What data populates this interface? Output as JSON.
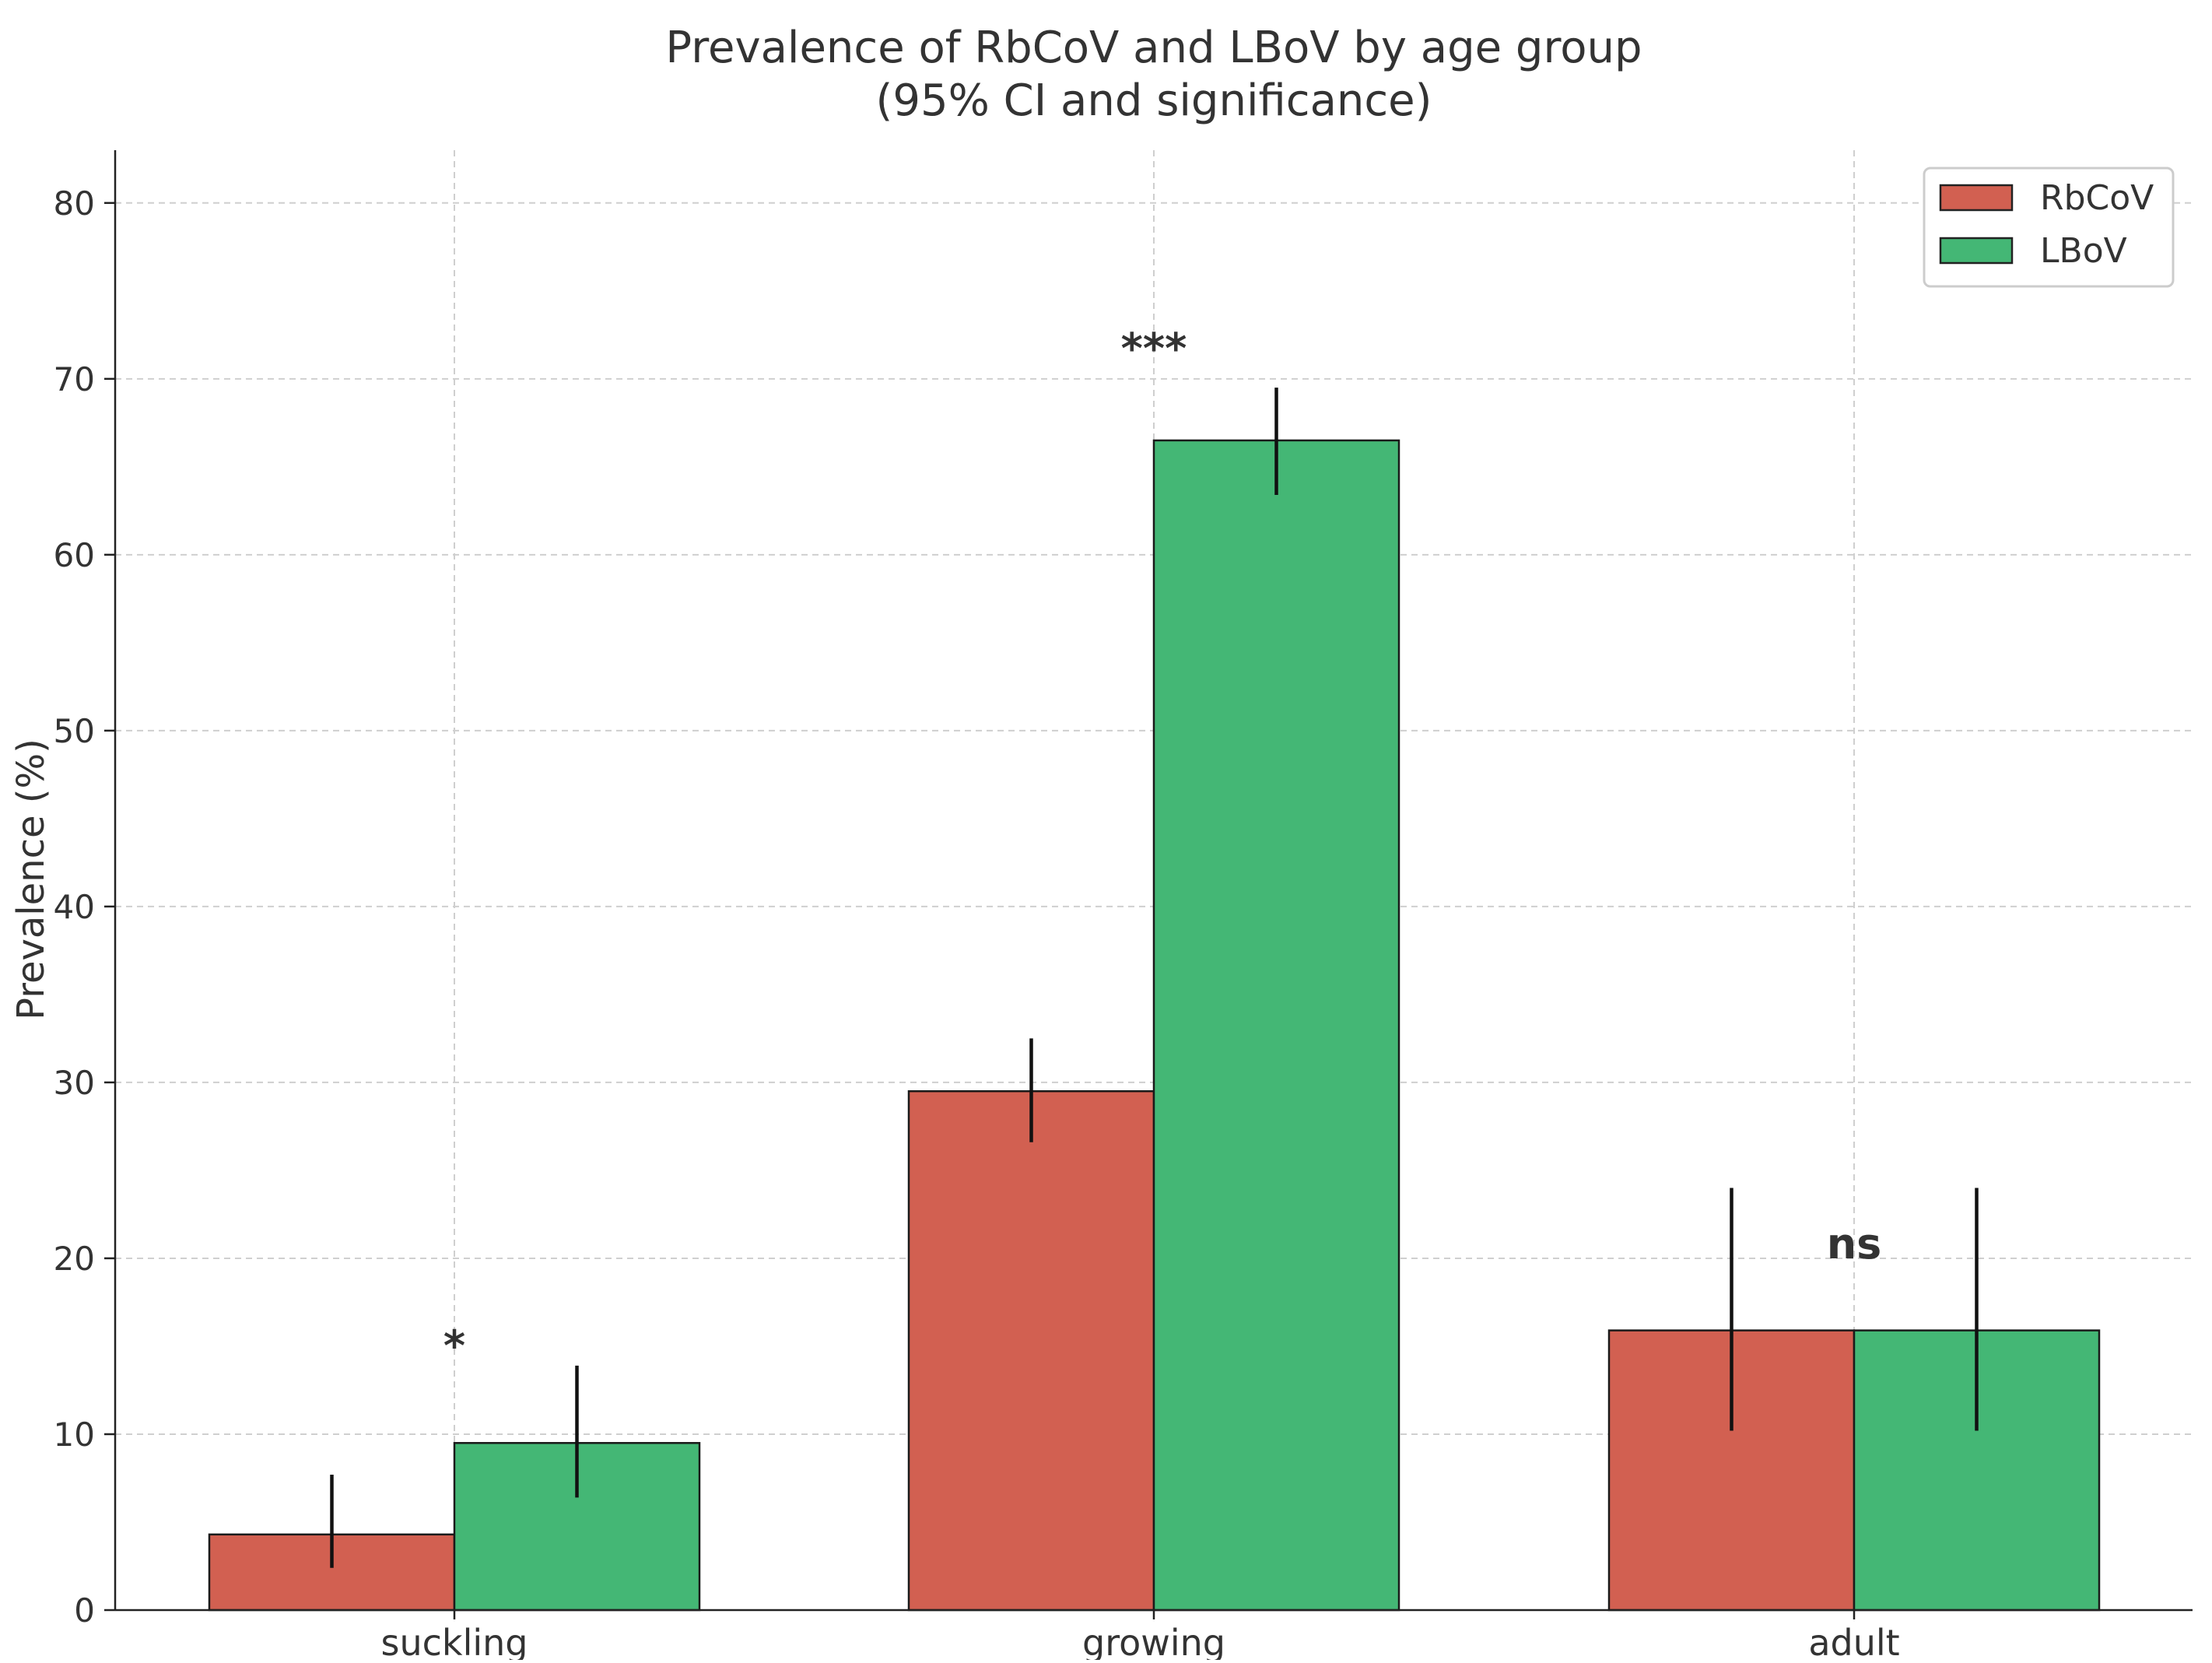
{
  "chart_data": {
    "type": "bar",
    "title": "Prevalence of RbCoV and LBoV by age group",
    "subtitle": "(95% CI and significance)",
    "xlabel": "",
    "ylabel": "Prevalence (%)",
    "ylim": [
      0,
      83
    ],
    "yticks": [
      0,
      10,
      20,
      30,
      40,
      50,
      60,
      70,
      80
    ],
    "grid": true,
    "legend_position": "top-right",
    "categories": [
      "suckling",
      "growing",
      "adult"
    ],
    "series": [
      {
        "name": "RbCoV",
        "color": "#d26051",
        "values": [
          4.3,
          29.5,
          15.9
        ],
        "ci_low": [
          2.4,
          26.6,
          10.2
        ],
        "ci_high": [
          7.7,
          32.5,
          24.0
        ]
      },
      {
        "name": "LBoV",
        "color": "#44b775",
        "values": [
          9.5,
          66.5,
          15.9
        ],
        "ci_low": [
          6.4,
          63.4,
          10.2
        ],
        "ci_high": [
          13.9,
          69.5,
          24.0
        ]
      }
    ],
    "significance": [
      {
        "category": "suckling",
        "label": "*",
        "y": 15.0
      },
      {
        "category": "growing",
        "label": "***",
        "y": 71.7
      },
      {
        "category": "adult",
        "label": "ns",
        "y": 20.8
      }
    ]
  }
}
